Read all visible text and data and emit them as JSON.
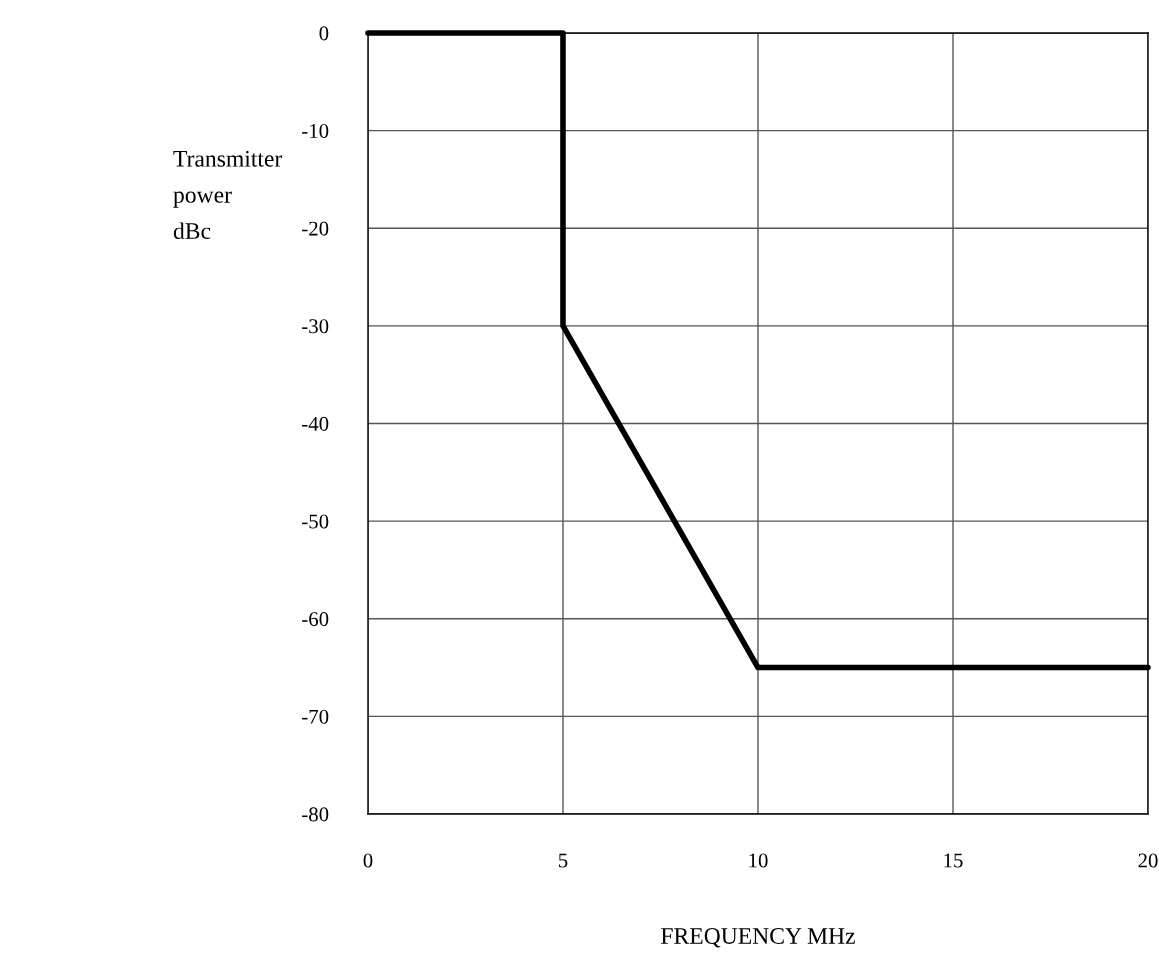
{
  "chart_data": {
    "type": "line",
    "xlabel": "FREQUENCY MHz",
    "ylabel": "Transmitter\npower\ndBc",
    "x": [
      0,
      5,
      5,
      10,
      20
    ],
    "series": [
      {
        "color": "#000000",
        "values": [
          0,
          0,
          -30,
          -65,
          -65
        ]
      }
    ],
    "xlim": [
      0,
      20
    ],
    "xticks": [
      0,
      5,
      10,
      15,
      20
    ],
    "ylim": [
      -80,
      0
    ],
    "yticks": [
      -80,
      -70,
      -60,
      -50,
      -40,
      -30,
      -20,
      -10,
      0
    ],
    "grid": true,
    "marker": "none",
    "line_style": "solid"
  }
}
